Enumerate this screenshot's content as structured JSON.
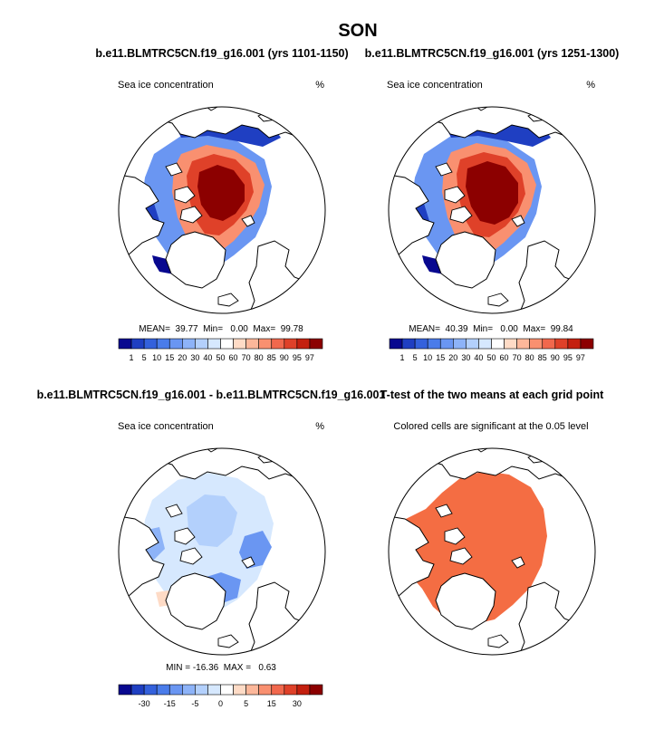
{
  "figure": {
    "title": "SON",
    "land_color": "#ffffff",
    "coast_color": "#000000"
  },
  "chart_data": [
    {
      "type": "heatmap",
      "panel": "top-left",
      "title": "b.e11.BLMTRC5CN.f19_g16.001 (yrs 1101-1150)",
      "variable": "Sea ice concentration",
      "units": "%",
      "stats": {
        "mean": "39.77",
        "min": "0.00",
        "max": "99.78"
      },
      "stats_text": "MEAN=  39.77  Min=   0.00  Max=  99.78",
      "colorbar": {
        "levels": [
          "1",
          "5",
          "10",
          "15",
          "20",
          "30",
          "40",
          "50",
          "60",
          "70",
          "80",
          "85",
          "90",
          "95",
          "97"
        ],
        "colors": [
          "#08088f",
          "#1f3fc2",
          "#3461dc",
          "#4a7cea",
          "#6a96f2",
          "#8db3f8",
          "#b3d0fc",
          "#d6e8fe",
          "#ffffff",
          "#fedbc6",
          "#fcb79a",
          "#f99070",
          "#f1684d",
          "#df4129",
          "#c4200f",
          "#8c0000"
        ]
      },
      "ice_region_values": {
        "central_arctic": 99,
        "pack_edge": 80,
        "beaufort": 90,
        "marginal_ice": 30,
        "outer_edge": 5
      }
    },
    {
      "type": "heatmap",
      "panel": "top-right",
      "title": "b.e11.BLMTRC5CN.f19_g16.001 (yrs 1251-1300)",
      "variable": "Sea ice concentration",
      "units": "%",
      "stats": {
        "mean": "40.39",
        "min": "0.00",
        "max": "99.84"
      },
      "stats_text": "MEAN=  40.39  Min=   0.00  Max=  99.84",
      "colorbar": {
        "levels": [
          "1",
          "5",
          "10",
          "15",
          "20",
          "30",
          "40",
          "50",
          "60",
          "70",
          "80",
          "85",
          "90",
          "95",
          "97"
        ],
        "colors": [
          "#08088f",
          "#1f3fc2",
          "#3461dc",
          "#4a7cea",
          "#6a96f2",
          "#8db3f8",
          "#b3d0fc",
          "#d6e8fe",
          "#ffffff",
          "#fedbc6",
          "#fcb79a",
          "#f99070",
          "#f1684d",
          "#df4129",
          "#c4200f",
          "#8c0000"
        ]
      },
      "ice_region_values": {
        "central_arctic": 99,
        "pack_edge": 82,
        "beaufort": 91,
        "marginal_ice": 32,
        "outer_edge": 5
      }
    },
    {
      "type": "heatmap",
      "panel": "bottom-left",
      "title": "b.e11.BLMTRC5CN.f19_g16.001 - b.e11.BLMTRC5CN.f19_g16.001",
      "variable": "Sea ice concentration",
      "units": "%",
      "stats": {
        "min": "-16.36",
        "max": "0.63"
      },
      "stats_text": "MIN = -16.36  MAX =   0.63",
      "colorbar": {
        "tick_labels": [
          "-30",
          "-15",
          "-5",
          "0",
          "5",
          "15",
          "30"
        ],
        "colors": [
          "#08088f",
          "#1f3fc2",
          "#3461dc",
          "#4a7cea",
          "#6a96f2",
          "#8db3f8",
          "#b3d0fc",
          "#d6e8fe",
          "#ffffff",
          "#fedbc6",
          "#fcb79a",
          "#f99070",
          "#f1684d",
          "#df4129",
          "#c4200f",
          "#8c0000"
        ]
      }
    },
    {
      "type": "heatmap",
      "panel": "bottom-right",
      "title": "T-test of the two means at each grid point",
      "subtitle": "Colored cells are significant at the 0.05 level",
      "significant_color": "#f46d43"
    }
  ]
}
